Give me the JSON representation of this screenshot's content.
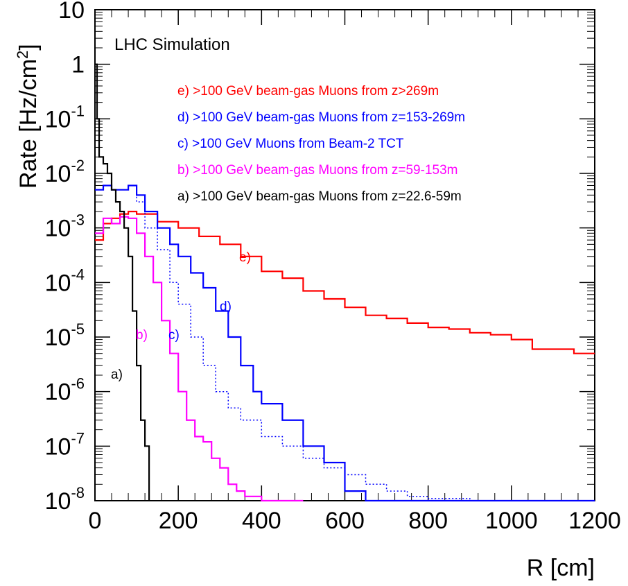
{
  "chart_data": {
    "type": "line",
    "title": "LHC Simulation",
    "xlabel": "R [cm]",
    "ylabel": "Rate [Hz/cm",
    "ylabel_sup": "2",
    "ylabel_close": "]",
    "xlim": [
      0,
      1200
    ],
    "ylim": [
      1e-08,
      10
    ],
    "yscale": "log",
    "x_ticks": [
      0,
      200,
      400,
      600,
      800,
      1000,
      1200
    ],
    "x_tick_labels": [
      "0",
      "200",
      "400",
      "600",
      "800",
      "1000",
      "1200"
    ],
    "y_ticks": [
      {
        "value": 1e-08,
        "base": "10",
        "exp": "-8"
      },
      {
        "value": 1e-07,
        "base": "10",
        "exp": "-7"
      },
      {
        "value": 1e-06,
        "base": "10",
        "exp": "-6"
      },
      {
        "value": 1e-05,
        "base": "10",
        "exp": "-5"
      },
      {
        "value": 0.0001,
        "base": "10",
        "exp": "-4"
      },
      {
        "value": 0.001,
        "base": "10",
        "exp": "-3"
      },
      {
        "value": 0.01,
        "base": "10",
        "exp": "-2"
      },
      {
        "value": 0.1,
        "base": "10",
        "exp": "-1"
      },
      {
        "value": 1,
        "base": "1",
        "exp": ""
      },
      {
        "value": 10,
        "base": "10",
        "exp": ""
      }
    ],
    "legend_position": "top-right",
    "series": [
      {
        "name": "e) >100 GeV beam-gas Muons from z>269m",
        "label": "e)",
        "color": "#ff0000",
        "style": "solid",
        "x": [
          0,
          20,
          40,
          60,
          80,
          100,
          150,
          200,
          250,
          300,
          350,
          400,
          450,
          500,
          550,
          600,
          650,
          700,
          750,
          800,
          850,
          900,
          950,
          1000,
          1050,
          1100,
          1150,
          1200
        ],
        "values": [
          0.0006,
          0.0012,
          0.0015,
          0.0018,
          0.002,
          0.0018,
          0.0013,
          0.001,
          0.0007,
          0.0005,
          0.0003,
          0.00016,
          0.00012,
          7e-05,
          5e-05,
          3.5e-05,
          2.5e-05,
          2.2e-05,
          1.8e-05,
          1.5e-05,
          1.4e-05,
          1.2e-05,
          1.1e-05,
          9e-06,
          6e-06,
          6e-06,
          5e-06,
          5e-06
        ]
      },
      {
        "name": "d) >100 GeV beam-gas Muons from z=153-269m",
        "label": "d)",
        "color": "#0000ff",
        "style": "solid",
        "x": [
          0,
          20,
          40,
          60,
          80,
          100,
          120,
          150,
          180,
          200,
          230,
          260,
          290,
          320,
          350,
          380,
          400,
          450,
          500,
          550,
          600,
          650,
          700,
          750,
          800,
          850,
          900,
          950,
          1000,
          1200
        ],
        "values": [
          0.005,
          0.006,
          0.005,
          0.005,
          0.006,
          0.004,
          0.002,
          0.001,
          0.0005,
          0.0003,
          0.00015,
          8e-05,
          3e-05,
          1e-05,
          3e-06,
          1e-06,
          6e-07,
          3e-07,
          1e-07,
          5e-08,
          1.5e-08,
          1e-08,
          1e-08,
          1e-08,
          1e-08,
          1e-08,
          1e-08,
          1e-08,
          1e-08,
          1e-08
        ]
      },
      {
        "name": "c) >100 GeV Muons from Beam-2 TCT",
        "label": "c)",
        "color": "#0000ff",
        "style": "dotted",
        "x": [
          0,
          20,
          40,
          60,
          80,
          100,
          120,
          150,
          180,
          200,
          230,
          260,
          290,
          320,
          350,
          400,
          450,
          500,
          550,
          600,
          650,
          700,
          750,
          800,
          850,
          900,
          950,
          1000,
          1200
        ],
        "values": [
          0.005,
          0.006,
          0.005,
          0.005,
          0.006,
          0.003,
          0.001,
          0.0004,
          0.0001,
          4e-05,
          1e-05,
          3e-06,
          1e-06,
          5e-07,
          3e-07,
          1.5e-07,
          1e-07,
          6e-08,
          4e-08,
          3e-08,
          2e-08,
          1.5e-08,
          1.2e-08,
          1.1e-08,
          1.1e-08,
          1e-08,
          1e-08,
          1e-08,
          1e-08
        ]
      },
      {
        "name": "b) >100 GeV beam-gas Muons from z=59-153m",
        "label": "b)",
        "color": "#ff00ff",
        "style": "solid",
        "x": [
          0,
          20,
          40,
          60,
          80,
          100,
          120,
          140,
          160,
          180,
          200,
          220,
          240,
          260,
          280,
          300,
          320,
          340,
          360,
          400,
          450,
          500
        ],
        "values": [
          0.0008,
          0.0015,
          0.0012,
          0.0016,
          0.0015,
          0.0008,
          0.0003,
          0.0001,
          2e-05,
          5e-06,
          1e-06,
          3e-07,
          1.5e-07,
          1.2e-07,
          6e-08,
          4e-08,
          2e-08,
          1.5e-08,
          1.2e-08,
          1e-08,
          1e-08,
          1e-08
        ]
      },
      {
        "name": "a) >100 GeV beam-gas Muons from z=22.6-59m",
        "label": "a)",
        "color": "#000000",
        "style": "solid",
        "x": [
          0,
          5,
          10,
          20,
          30,
          40,
          50,
          60,
          70,
          80,
          90,
          100,
          110,
          120,
          130
        ],
        "values": [
          1.0,
          0.1,
          0.02,
          0.015,
          0.01,
          0.005,
          0.003,
          0.002,
          0.001,
          0.0003,
          3e-05,
          3e-06,
          3e-07,
          1e-07,
          1e-08
        ]
      }
    ]
  }
}
